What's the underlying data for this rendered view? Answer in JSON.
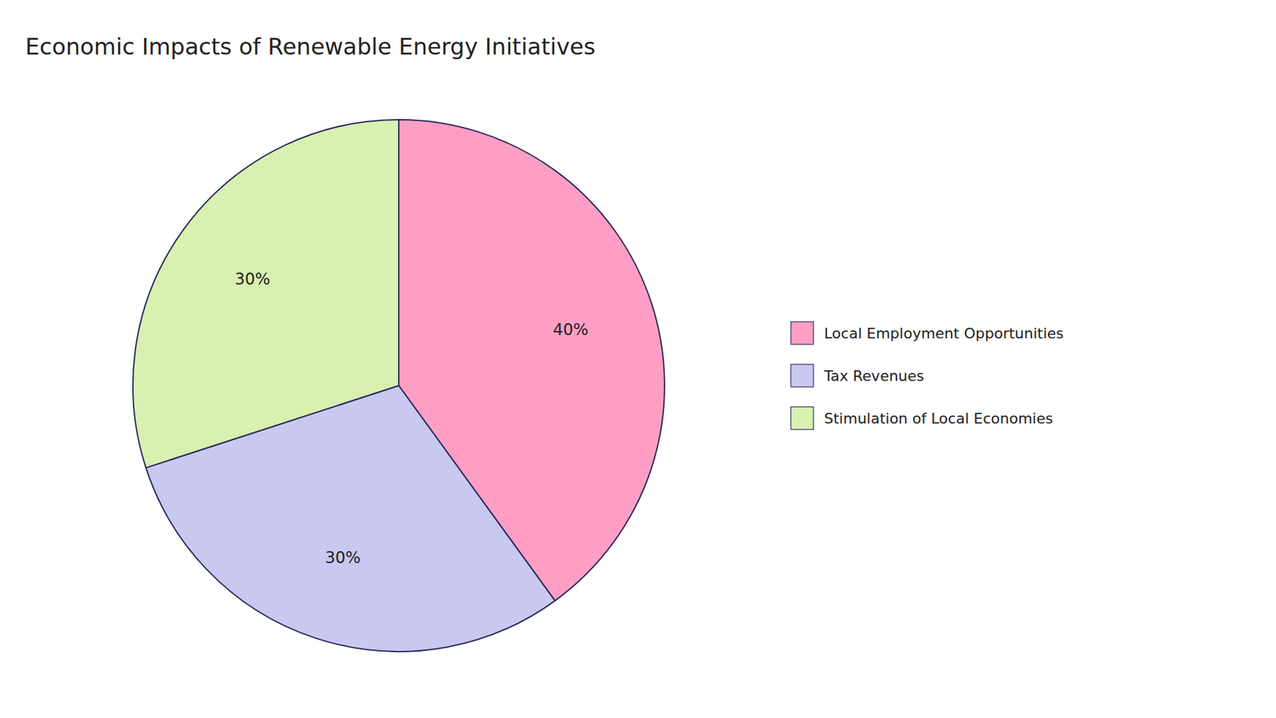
{
  "chart_data": {
    "type": "pie",
    "title": "Economic Impacts of Renewable Energy Initiatives",
    "categories": [
      "Local Employment Opportunities",
      "Tax Revenues",
      "Stimulation of Local Economies"
    ],
    "values": [
      40,
      30,
      30
    ],
    "value_labels": [
      "40%",
      "30%",
      "30%"
    ],
    "colors": [
      "#FF9EC4",
      "#C8C8F0",
      "#D8F0B0"
    ],
    "data_labels": true,
    "legend": "right"
  }
}
